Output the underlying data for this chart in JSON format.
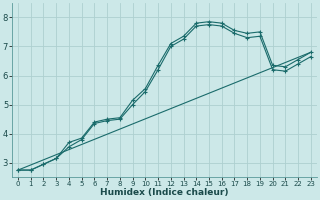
{
  "title": "",
  "xlabel": "Humidex (Indice chaleur)",
  "ylabel": "",
  "bg_color": "#cce8e8",
  "grid_color": "#aed0d0",
  "line_color": "#1a6b6b",
  "xlim": [
    -0.5,
    23.5
  ],
  "ylim": [
    2.5,
    8.5
  ],
  "xticks": [
    0,
    1,
    2,
    3,
    4,
    5,
    6,
    7,
    8,
    9,
    10,
    11,
    12,
    13,
    14,
    15,
    16,
    17,
    18,
    19,
    20,
    21,
    22,
    23
  ],
  "yticks": [
    3,
    4,
    5,
    6,
    7,
    8
  ],
  "series1_x": [
    0,
    1,
    2,
    3,
    4,
    5,
    6,
    7,
    8,
    9,
    10,
    11,
    12,
    13,
    14,
    15,
    16,
    17,
    18,
    19,
    20,
    21,
    22,
    23
  ],
  "series1_y": [
    2.75,
    2.75,
    2.95,
    3.15,
    3.7,
    3.85,
    4.4,
    4.5,
    4.55,
    5.15,
    5.55,
    6.35,
    7.1,
    7.35,
    7.8,
    7.85,
    7.8,
    7.55,
    7.45,
    7.5,
    6.35,
    6.3,
    6.55,
    6.8
  ],
  "series2_x": [
    0,
    1,
    2,
    3,
    4,
    5,
    6,
    7,
    8,
    9,
    10,
    11,
    12,
    13,
    14,
    15,
    16,
    17,
    18,
    19,
    20,
    21,
    22,
    23
  ],
  "series2_y": [
    2.75,
    2.75,
    2.95,
    3.15,
    3.55,
    3.8,
    4.35,
    4.45,
    4.5,
    5.0,
    5.45,
    6.2,
    7.0,
    7.25,
    7.7,
    7.75,
    7.7,
    7.45,
    7.3,
    7.35,
    6.2,
    6.15,
    6.4,
    6.65
  ],
  "line3_x": [
    0,
    23
  ],
  "line3_y": [
    2.75,
    6.8
  ],
  "marker": "+"
}
